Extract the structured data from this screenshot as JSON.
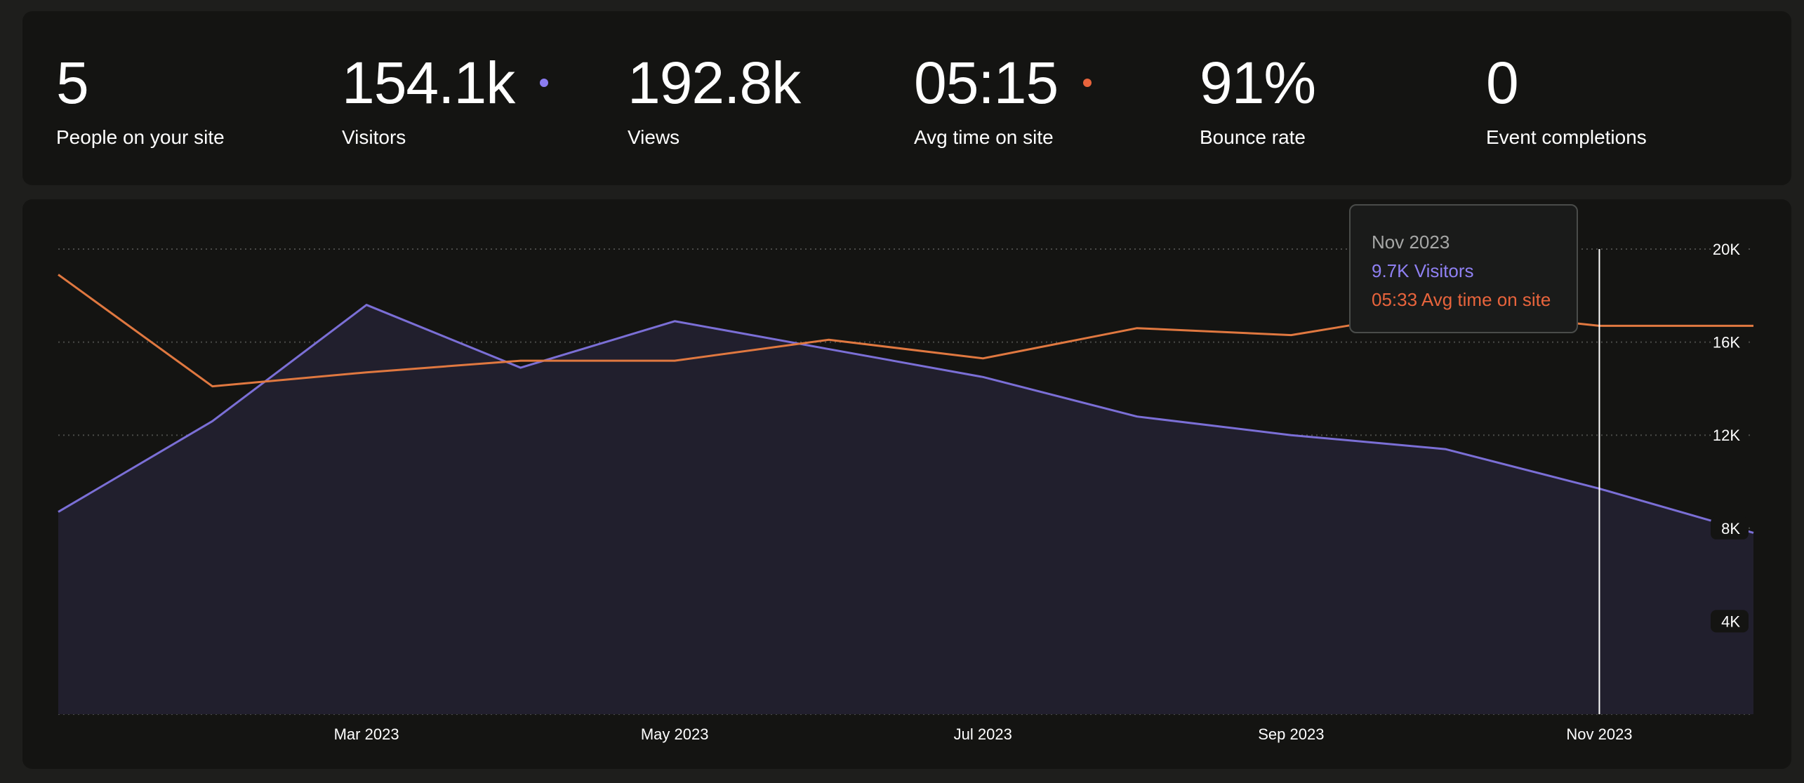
{
  "stats": [
    {
      "value": "5",
      "label": "People on your site",
      "dot": null
    },
    {
      "value": "154.1k",
      "label": "Visitors",
      "dot": "#8b7cf0"
    },
    {
      "value": "192.8k",
      "label": "Views",
      "dot": null
    },
    {
      "value": "05:15",
      "label": "Avg time on site",
      "dot": "#e8643c"
    },
    {
      "value": "91%",
      "label": "Bounce rate",
      "dot": null
    },
    {
      "value": "0",
      "label": "Event completions",
      "dot": null
    }
  ],
  "tooltip": {
    "date": "Nov 2023",
    "visitors": "9.7K Visitors",
    "avg_time": "05:33 Avg time on site"
  },
  "colors": {
    "visitors": "#7b6fd6",
    "avg_time": "#e07840",
    "visitors_fill": "#211f2d"
  },
  "chart_data": {
    "type": "line",
    "x": [
      "Jan 2023",
      "Feb 2023",
      "Mar 2023",
      "Apr 2023",
      "May 2023",
      "Jun 2023",
      "Jul 2023",
      "Aug 2023",
      "Sep 2023",
      "Oct 2023",
      "Nov 2023",
      "Dec 2023"
    ],
    "x_tick_labels": [
      "Mar 2023",
      "May 2023",
      "Jul 2023",
      "Sep 2023",
      "Nov 2023"
    ],
    "y_ticks": [
      "20K",
      "16K",
      "12K",
      "8K",
      "4K"
    ],
    "ylim": [
      0,
      20000
    ],
    "grid": true,
    "hover_x": "Nov 2023",
    "series": [
      {
        "name": "Visitors",
        "area": true,
        "values": [
          8700,
          12600,
          17600,
          14900,
          16900,
          15700,
          14500,
          12800,
          12000,
          11400,
          9700,
          7800
        ]
      },
      {
        "name": "Avg time on site",
        "values": [
          18900,
          14100,
          14700,
          15200,
          15200,
          16100,
          15300,
          16600,
          16300,
          17400,
          16700,
          16700
        ]
      }
    ]
  }
}
